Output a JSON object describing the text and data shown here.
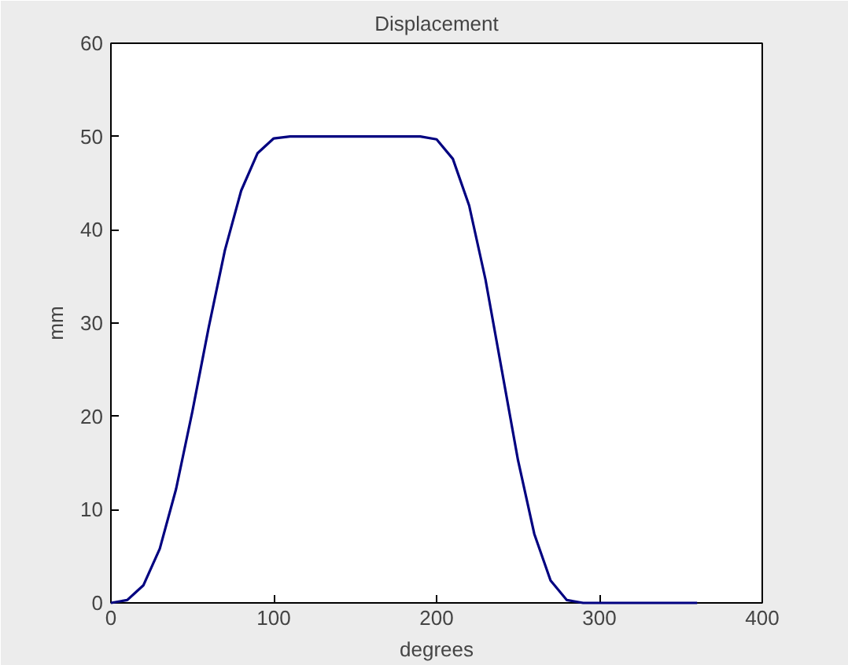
{
  "chart_data": {
    "type": "line",
    "title": "Displacement",
    "xlabel": "degrees",
    "ylabel": "mm",
    "x": [
      0,
      10,
      20,
      30,
      40,
      50,
      60,
      70,
      80,
      90,
      100,
      110,
      120,
      140,
      160,
      180,
      190,
      200,
      210,
      220,
      230,
      240,
      250,
      260,
      270,
      280,
      290,
      300,
      320,
      340,
      360
    ],
    "series": [
      {
        "color": "#000080",
        "values": [
          0,
          0.3,
          1.9,
          5.8,
          12.2,
          20.5,
          29.5,
          37.8,
          44.2,
          48.2,
          49.8,
          50,
          50,
          50,
          50,
          50,
          50,
          49.7,
          47.6,
          42.6,
          34.7,
          25,
          15.3,
          7.4,
          2.4,
          0.3,
          0,
          0,
          0,
          0,
          0
        ]
      }
    ],
    "xlim": [
      0,
      400
    ],
    "xticks": [
      0,
      100,
      200,
      300,
      400
    ],
    "ylim": [
      0,
      60
    ],
    "yticks": [
      0,
      10,
      20,
      30,
      40,
      50,
      60
    ],
    "grid": false
  }
}
